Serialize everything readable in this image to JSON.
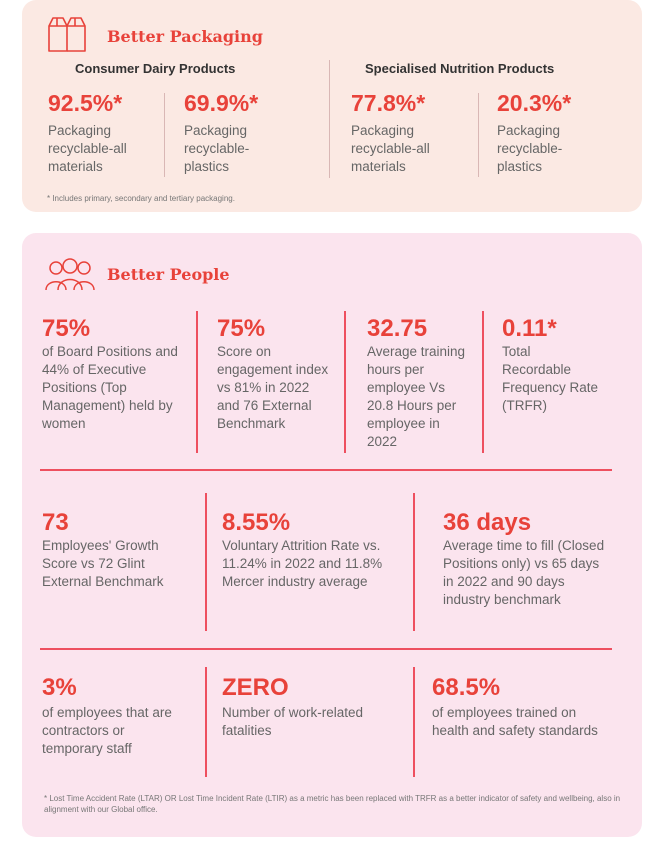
{
  "packaging": {
    "title": "Better Packaging",
    "col1_heading": "Consumer Dairy Products",
    "col2_heading": "Specialised Nutrition Products",
    "stats": [
      {
        "value": "92.5%*",
        "label": "Packaging recyclable-all materials"
      },
      {
        "value": "69.9%*",
        "label": "Packaging recyclable-plastics"
      },
      {
        "value": "77.8%*",
        "label": "Packaging recyclable-all materials"
      },
      {
        "value": "20.3%*",
        "label": "Packaging recyclable-plastics"
      }
    ],
    "footnote": "* Includes primary, secondary and tertiary packaging."
  },
  "people": {
    "title": "Better People",
    "row1": [
      {
        "value": "75%",
        "label": "of Board Positions and 44% of Executive Positions (Top Management) held by women"
      },
      {
        "value": "75%",
        "label": "Score on engagement index vs 81% in 2022 and 76 External Benchmark"
      },
      {
        "value": "32.75",
        "label": "Average training hours per employee Vs 20.8 Hours per employee in 2022"
      },
      {
        "value": "0.11*",
        "label": "Total Recordable Frequency Rate (TRFR)"
      }
    ],
    "row2": [
      {
        "value": "73",
        "label": "Employees' Growth Score vs 72 Glint External Benchmark"
      },
      {
        "value": "8.55%",
        "label": "Voluntary Attrition Rate vs. 11.24% in 2022 and 11.8% Mercer industry average"
      },
      {
        "value": "36 days",
        "label": "Average time to fill (Closed Positions only) vs 65 days in 2022 and 90 days industry benchmark"
      }
    ],
    "row3": [
      {
        "value": "3%",
        "label": "of employees that are contractors or temporary staff"
      },
      {
        "value": "ZERO",
        "label": "Number of work-related fatalities"
      },
      {
        "value": "68.5%",
        "label": "of employees trained on health and safety standards"
      }
    ],
    "footnote": "* Lost Time Accident Rate (LTAR) OR Lost Time Incident Rate (LTIR) as a metric has been replaced with TRFR as a better indicator of safety and wellbeing, also in alignment with our Global office."
  },
  "icons": {
    "packaging": "packaging-boxes-icon",
    "people": "people-group-icon"
  },
  "colors": {
    "accent": "#e8423a",
    "divider": "#ee4f5f",
    "packaging_bg": "#fbe9e3",
    "people_bg": "#fbe4ee"
  }
}
